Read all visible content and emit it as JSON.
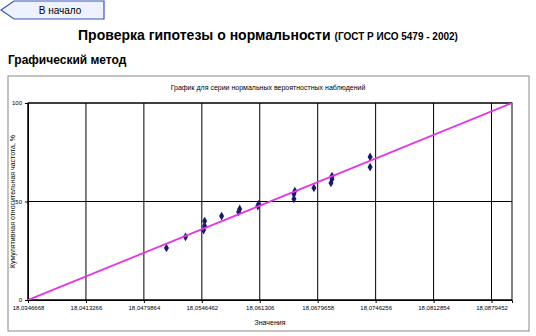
{
  "header": {
    "button": "В начало",
    "title": "Проверка гипотезы о нормальности",
    "title_note": "(ГОСТ Р ИСО 5479 - 2002)",
    "subtitle": "Графический метод"
  },
  "chart_data": {
    "type": "scatter",
    "title": "График для серии нормальных вероятностных наблюдений",
    "x_label": "Значения",
    "y_label": "Кумулятивная относительная частота, %",
    "xlim": [
      18.0346668,
      18.0903
    ],
    "ylim": [
      0,
      100
    ],
    "xticks": [
      {
        "value": 18.0346668,
        "label": "18,0346668"
      },
      {
        "value": 18.0413266,
        "label": "18,0413266"
      },
      {
        "value": 18.0479864,
        "label": "18,0479864"
      },
      {
        "value": 18.0546462,
        "label": "18,0546462"
      },
      {
        "value": 18.061306,
        "label": "18,061306"
      },
      {
        "value": 18.0679658,
        "label": "18,0679658"
      },
      {
        "value": 18.0746256,
        "label": "18,0746256"
      },
      {
        "value": 18.0812854,
        "label": "18,0812854"
      },
      {
        "value": 18.0879452,
        "label": "18,0879452"
      }
    ],
    "yticks": [
      0,
      50,
      100
    ],
    "grid": true,
    "series": [
      {
        "type": "scatter",
        "marker": "diamond",
        "color": "#1a1a6e",
        "x": [
          18.05058,
          18.05277,
          18.05485,
          18.05497,
          18.05497,
          18.05692,
          18.05888,
          18.059,
          18.06108,
          18.06119,
          18.06523,
          18.06523,
          18.06534,
          18.06753,
          18.06949,
          18.06961,
          18.06961,
          18.07399,
          18.07399
        ],
        "values": [
          26.4,
          32.0,
          35.5,
          37.6,
          40.1,
          42.6,
          44.7,
          46.2,
          47.7,
          48.7,
          51.3,
          53.8,
          55.3,
          56.9,
          59.4,
          61.4,
          62.9,
          67.5,
          72.6
        ]
      },
      {
        "type": "line",
        "line_style": "solid",
        "color": "#e633e6",
        "x": [
          18.0346668,
          18.0903
        ],
        "values": [
          0,
          100
        ]
      }
    ]
  }
}
